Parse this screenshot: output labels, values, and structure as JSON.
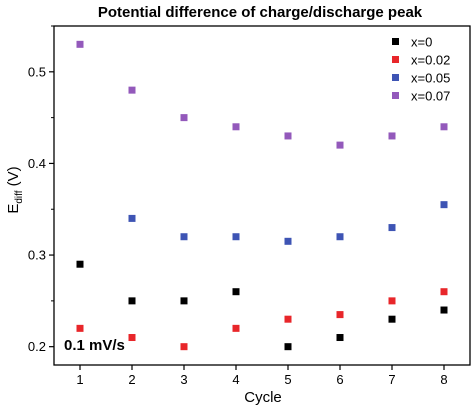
{
  "chart_data": {
    "type": "scatter",
    "title": "Potential difference of charge/discharge peak",
    "xlabel": "Cycle",
    "ylabel_main": "E",
    "ylabel_sub": "diff",
    "ylabel_unit": " (V)",
    "xlim": [
      0.5,
      8.5
    ],
    "ylim": [
      0.18,
      0.55
    ],
    "xticks": [
      1,
      2,
      3,
      4,
      5,
      6,
      7,
      8
    ],
    "yticks": [
      0.2,
      0.3,
      0.4,
      0.5
    ],
    "grid": false,
    "legend_position": "top-right",
    "annotation": "0.1 mV/s",
    "series": [
      {
        "name": "x=0",
        "color": "#000000",
        "x": [
          1,
          2,
          3,
          4,
          5,
          6,
          7,
          8
        ],
        "y": [
          0.29,
          0.25,
          0.25,
          0.26,
          0.2,
          0.21,
          0.23,
          0.24
        ]
      },
      {
        "name": "x=0.02",
        "color": "#e8262a",
        "x": [
          1,
          2,
          3,
          4,
          5,
          6,
          7,
          8
        ],
        "y": [
          0.22,
          0.21,
          0.2,
          0.22,
          0.23,
          0.235,
          0.25,
          0.26
        ]
      },
      {
        "name": "x=0.05",
        "color": "#3e54b4",
        "x": [
          2,
          3,
          4,
          5,
          6,
          7,
          8
        ],
        "y": [
          0.34,
          0.32,
          0.32,
          0.315,
          0.32,
          0.33,
          0.355
        ]
      },
      {
        "name": "x=0.07",
        "color": "#9359bb",
        "x": [
          1,
          2,
          3,
          4,
          5,
          6,
          7,
          8
        ],
        "y": [
          0.53,
          0.48,
          0.45,
          0.44,
          0.43,
          0.42,
          0.43,
          0.44
        ]
      }
    ]
  }
}
